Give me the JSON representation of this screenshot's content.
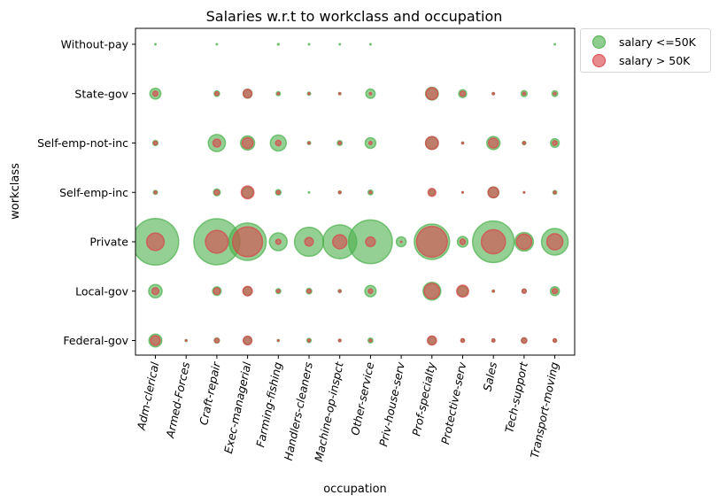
{
  "chart_data": {
    "type": "scatter",
    "title": "Salaries w.r.t to workclass and occupation",
    "xlabel": "occupation",
    "ylabel": "workclass",
    "categories_x": [
      "Adm-clerical",
      "Armed-Forces",
      "Craft-repair",
      "Exec-managerial",
      "Farming-fishing",
      "Handlers-cleaners",
      "Machine-op-inspct",
      "Other-service",
      "Priv-house-serv",
      "Prof-specialty",
      "Protective-serv",
      "Sales",
      "Tech-support",
      "Transport-moving"
    ],
    "categories_y": [
      "Federal-gov",
      "Local-gov",
      "Private",
      "Self-emp-inc",
      "Self-emp-not-inc",
      "State-gov",
      "Without-pay"
    ],
    "grid": false,
    "legend_position": "outside-top-right",
    "series": [
      {
        "name": "salary <=50K",
        "color": "#4cb04c",
        "points": [
          {
            "x": "Adm-clerical",
            "y": "Without-pay",
            "size": 3
          },
          {
            "x": "Craft-repair",
            "y": "Without-pay",
            "size": 1
          },
          {
            "x": "Farming-fishing",
            "y": "Without-pay",
            "size": 4
          },
          {
            "x": "Handlers-cleaners",
            "y": "Without-pay",
            "size": 1
          },
          {
            "x": "Machine-op-inspct",
            "y": "Without-pay",
            "size": 1
          },
          {
            "x": "Other-service",
            "y": "Without-pay",
            "size": 1
          },
          {
            "x": "Transport-moving",
            "y": "Without-pay",
            "size": 1
          },
          {
            "x": "Adm-clerical",
            "y": "State-gov",
            "size": 180
          },
          {
            "x": "Craft-repair",
            "y": "State-gov",
            "size": 45
          },
          {
            "x": "Exec-managerial",
            "y": "State-gov",
            "size": 120
          },
          {
            "x": "Farming-fishing",
            "y": "State-gov",
            "size": 25
          },
          {
            "x": "Handlers-cleaners",
            "y": "State-gov",
            "size": 15
          },
          {
            "x": "Machine-op-inspct",
            "y": "State-gov",
            "size": 8
          },
          {
            "x": "Other-service",
            "y": "State-gov",
            "size": 130
          },
          {
            "x": "Prof-specialty",
            "y": "State-gov",
            "size": 245
          },
          {
            "x": "Protective-serv",
            "y": "State-gov",
            "size": 95
          },
          {
            "x": "Sales",
            "y": "State-gov",
            "size": 8
          },
          {
            "x": "Tech-support",
            "y": "State-gov",
            "size": 55
          },
          {
            "x": "Transport-moving",
            "y": "State-gov",
            "size": 50
          },
          {
            "x": "Adm-clerical",
            "y": "Self-emp-not-inc",
            "size": 40
          },
          {
            "x": "Craft-repair",
            "y": "Self-emp-not-inc",
            "size": 440
          },
          {
            "x": "Exec-managerial",
            "y": "Self-emp-not-inc",
            "size": 300
          },
          {
            "x": "Farming-fishing",
            "y": "Self-emp-not-inc",
            "size": 380
          },
          {
            "x": "Handlers-cleaners",
            "y": "Self-emp-not-inc",
            "size": 15
          },
          {
            "x": "Machine-op-inspct",
            "y": "Self-emp-not-inc",
            "size": 36
          },
          {
            "x": "Other-service",
            "y": "Self-emp-not-inc",
            "size": 170
          },
          {
            "x": "Prof-specialty",
            "y": "Self-emp-not-inc",
            "size": 240
          },
          {
            "x": "Protective-serv",
            "y": "Self-emp-not-inc",
            "size": 6
          },
          {
            "x": "Sales",
            "y": "Self-emp-not-inc",
            "size": 260
          },
          {
            "x": "Tech-support",
            "y": "Self-emp-not-inc",
            "size": 18
          },
          {
            "x": "Transport-moving",
            "y": "Self-emp-not-inc",
            "size": 110
          },
          {
            "x": "Adm-clerical",
            "y": "Self-emp-inc",
            "size": 25
          },
          {
            "x": "Craft-repair",
            "y": "Self-emp-inc",
            "size": 70
          },
          {
            "x": "Exec-managerial",
            "y": "Self-emp-inc",
            "size": 185
          },
          {
            "x": "Farming-fishing",
            "y": "Self-emp-inc",
            "size": 45
          },
          {
            "x": "Handlers-cleaners",
            "y": "Self-emp-inc",
            "size": 2
          },
          {
            "x": "Machine-op-inspct",
            "y": "Self-emp-inc",
            "size": 12
          },
          {
            "x": "Other-service",
            "y": "Self-emp-inc",
            "size": 35
          },
          {
            "x": "Prof-specialty",
            "y": "Self-emp-inc",
            "size": 55
          },
          {
            "x": "Protective-serv",
            "y": "Self-emp-inc",
            "size": 3
          },
          {
            "x": "Sales",
            "y": "Self-emp-inc",
            "size": 175
          },
          {
            "x": "Tech-support",
            "y": "Self-emp-inc",
            "size": 2
          },
          {
            "x": "Transport-moving",
            "y": "Self-emp-inc",
            "size": 22
          },
          {
            "x": "Adm-clerical",
            "y": "Private",
            "size": 3260
          },
          {
            "x": "Craft-repair",
            "y": "Private",
            "size": 3180
          },
          {
            "x": "Exec-managerial",
            "y": "Private",
            "size": 2100
          },
          {
            "x": "Farming-fishing",
            "y": "Private",
            "size": 470
          },
          {
            "x": "Handlers-cleaners",
            "y": "Private",
            "size": 1270
          },
          {
            "x": "Machine-op-inspct",
            "y": "Private",
            "size": 1720
          },
          {
            "x": "Other-service",
            "y": "Private",
            "size": 2880
          },
          {
            "x": "Priv-house-serv",
            "y": "Private",
            "size": 145
          },
          {
            "x": "Prof-specialty",
            "y": "Private",
            "size": 1880
          },
          {
            "x": "Protective-serv",
            "y": "Private",
            "size": 170
          },
          {
            "x": "Sales",
            "y": "Private",
            "size": 2600
          },
          {
            "x": "Tech-support",
            "y": "Private",
            "size": 520
          },
          {
            "x": "Transport-moving",
            "y": "Private",
            "size": 1070
          },
          {
            "x": "Adm-clerical",
            "y": "Local-gov",
            "size": 270
          },
          {
            "x": "Craft-repair",
            "y": "Local-gov",
            "size": 110
          },
          {
            "x": "Exec-managerial",
            "y": "Local-gov",
            "size": 115
          },
          {
            "x": "Farming-fishing",
            "y": "Local-gov",
            "size": 36
          },
          {
            "x": "Handlers-cleaners",
            "y": "Local-gov",
            "size": 45
          },
          {
            "x": "Machine-op-inspct",
            "y": "Local-gov",
            "size": 14
          },
          {
            "x": "Other-service",
            "y": "Local-gov",
            "size": 190
          },
          {
            "x": "Prof-specialty",
            "y": "Local-gov",
            "size": 470
          },
          {
            "x": "Protective-serv",
            "y": "Local-gov",
            "size": 160
          },
          {
            "x": "Sales",
            "y": "Local-gov",
            "size": 7
          },
          {
            "x": "Tech-support",
            "y": "Local-gov",
            "size": 26
          },
          {
            "x": "Transport-moving",
            "y": "Local-gov",
            "size": 120
          },
          {
            "x": "Adm-clerical",
            "y": "Federal-gov",
            "size": 250
          },
          {
            "x": "Armed-Forces",
            "y": "Federal-gov",
            "size": 6
          },
          {
            "x": "Craft-repair",
            "y": "Federal-gov",
            "size": 40
          },
          {
            "x": "Exec-managerial",
            "y": "Federal-gov",
            "size": 95
          },
          {
            "x": "Farming-fishing",
            "y": "Federal-gov",
            "size": 6
          },
          {
            "x": "Handlers-cleaners",
            "y": "Federal-gov",
            "size": 28
          },
          {
            "x": "Machine-op-inspct",
            "y": "Federal-gov",
            "size": 10
          },
          {
            "x": "Other-service",
            "y": "Federal-gov",
            "size": 35
          },
          {
            "x": "Prof-specialty",
            "y": "Federal-gov",
            "size": 95
          },
          {
            "x": "Protective-serv",
            "y": "Federal-gov",
            "size": 16
          },
          {
            "x": "Sales",
            "y": "Federal-gov",
            "size": 14
          },
          {
            "x": "Tech-support",
            "y": "Federal-gov",
            "size": 45
          },
          {
            "x": "Transport-moving",
            "y": "Federal-gov",
            "size": 18
          }
        ]
      },
      {
        "name": "salary > 50K",
        "color": "#d9464b",
        "points": [
          {
            "x": "Adm-clerical",
            "y": "State-gov",
            "size": 38
          },
          {
            "x": "Craft-repair",
            "y": "State-gov",
            "size": 22
          },
          {
            "x": "Exec-managerial",
            "y": "State-gov",
            "size": 110
          },
          {
            "x": "Farming-fishing",
            "y": "State-gov",
            "size": 6
          },
          {
            "x": "Handlers-cleaners",
            "y": "State-gov",
            "size": 5
          },
          {
            "x": "Machine-op-inspct",
            "y": "State-gov",
            "size": 5
          },
          {
            "x": "Other-service",
            "y": "State-gov",
            "size": 7
          },
          {
            "x": "Prof-specialty",
            "y": "State-gov",
            "size": 215
          },
          {
            "x": "Protective-serv",
            "y": "State-gov",
            "size": 40
          },
          {
            "x": "Sales",
            "y": "State-gov",
            "size": 6
          },
          {
            "x": "Tech-support",
            "y": "State-gov",
            "size": 12
          },
          {
            "x": "Transport-moving",
            "y": "State-gov",
            "size": 10
          },
          {
            "x": "Adm-clerical",
            "y": "Self-emp-not-inc",
            "size": 20
          },
          {
            "x": "Craft-repair",
            "y": "Self-emp-not-inc",
            "size": 95
          },
          {
            "x": "Exec-managerial",
            "y": "Self-emp-not-inc",
            "size": 180
          },
          {
            "x": "Farming-fishing",
            "y": "Self-emp-not-inc",
            "size": 45
          },
          {
            "x": "Handlers-cleaners",
            "y": "Self-emp-not-inc",
            "size": 6
          },
          {
            "x": "Machine-op-inspct",
            "y": "Self-emp-not-inc",
            "size": 12
          },
          {
            "x": "Other-service",
            "y": "Self-emp-not-inc",
            "size": 14
          },
          {
            "x": "Prof-specialty",
            "y": "Self-emp-not-inc",
            "size": 245
          },
          {
            "x": "Protective-serv",
            "y": "Self-emp-not-inc",
            "size": 5
          },
          {
            "x": "Sales",
            "y": "Self-emp-not-inc",
            "size": 145
          },
          {
            "x": "Tech-support",
            "y": "Self-emp-not-inc",
            "size": 11
          },
          {
            "x": "Transport-moving",
            "y": "Self-emp-not-inc",
            "size": 32
          },
          {
            "x": "Adm-clerical",
            "y": "Self-emp-inc",
            "size": 10
          },
          {
            "x": "Craft-repair",
            "y": "Self-emp-inc",
            "size": 36
          },
          {
            "x": "Exec-managerial",
            "y": "Self-emp-inc",
            "size": 245
          },
          {
            "x": "Farming-fishing",
            "y": "Self-emp-inc",
            "size": 18
          },
          {
            "x": "Machine-op-inspct",
            "y": "Self-emp-inc",
            "size": 8
          },
          {
            "x": "Other-service",
            "y": "Self-emp-inc",
            "size": 9
          },
          {
            "x": "Prof-specialty",
            "y": "Self-emp-inc",
            "size": 95
          },
          {
            "x": "Protective-serv",
            "y": "Self-emp-inc",
            "size": 3
          },
          {
            "x": "Sales",
            "y": "Self-emp-inc",
            "size": 170
          },
          {
            "x": "Tech-support",
            "y": "Self-emp-inc",
            "size": 2
          },
          {
            "x": "Transport-moving",
            "y": "Self-emp-inc",
            "size": 10
          },
          {
            "x": "Adm-clerical",
            "y": "Private",
            "size": 465
          },
          {
            "x": "Craft-repair",
            "y": "Private",
            "size": 780
          },
          {
            "x": "Exec-managerial",
            "y": "Private",
            "size": 1350
          },
          {
            "x": "Farming-fishing",
            "y": "Private",
            "size": 40
          },
          {
            "x": "Handlers-cleaners",
            "y": "Private",
            "size": 110
          },
          {
            "x": "Machine-op-inspct",
            "y": "Private",
            "size": 300
          },
          {
            "x": "Other-service",
            "y": "Private",
            "size": 140
          },
          {
            "x": "Priv-house-serv",
            "y": "Private",
            "size": 2
          },
          {
            "x": "Prof-specialty",
            "y": "Private",
            "size": 1420
          },
          {
            "x": "Protective-serv",
            "y": "Private",
            "size": 45
          },
          {
            "x": "Sales",
            "y": "Private",
            "size": 880
          },
          {
            "x": "Tech-support",
            "y": "Private",
            "size": 350
          },
          {
            "x": "Transport-moving",
            "y": "Private",
            "size": 390
          },
          {
            "x": "Adm-clerical",
            "y": "Local-gov",
            "size": 70
          },
          {
            "x": "Craft-repair",
            "y": "Local-gov",
            "size": 65
          },
          {
            "x": "Exec-managerial",
            "y": "Local-gov",
            "size": 135
          },
          {
            "x": "Farming-fishing",
            "y": "Local-gov",
            "size": 14
          },
          {
            "x": "Handlers-cleaners",
            "y": "Local-gov",
            "size": 22
          },
          {
            "x": "Machine-op-inspct",
            "y": "Local-gov",
            "size": 7
          },
          {
            "x": "Other-service",
            "y": "Local-gov",
            "size": 30
          },
          {
            "x": "Prof-specialty",
            "y": "Local-gov",
            "size": 360
          },
          {
            "x": "Protective-serv",
            "y": "Local-gov",
            "size": 215
          },
          {
            "x": "Sales",
            "y": "Local-gov",
            "size": 5
          },
          {
            "x": "Tech-support",
            "y": "Local-gov",
            "size": 26
          },
          {
            "x": "Transport-moving",
            "y": "Local-gov",
            "size": 40
          },
          {
            "x": "Adm-clerical",
            "y": "Federal-gov",
            "size": 145
          },
          {
            "x": "Armed-Forces",
            "y": "Federal-gov",
            "size": 2
          },
          {
            "x": "Craft-repair",
            "y": "Federal-gov",
            "size": 30
          },
          {
            "x": "Exec-managerial",
            "y": "Federal-gov",
            "size": 115
          },
          {
            "x": "Farming-fishing",
            "y": "Federal-gov",
            "size": 3
          },
          {
            "x": "Handlers-cleaners",
            "y": "Federal-gov",
            "size": 10
          },
          {
            "x": "Machine-op-inspct",
            "y": "Federal-gov",
            "size": 7
          },
          {
            "x": "Other-service",
            "y": "Federal-gov",
            "size": 9
          },
          {
            "x": "Prof-specialty",
            "y": "Federal-gov",
            "size": 125
          },
          {
            "x": "Protective-serv",
            "y": "Federal-gov",
            "size": 22
          },
          {
            "x": "Sales",
            "y": "Federal-gov",
            "size": 14
          },
          {
            "x": "Tech-support",
            "y": "Federal-gov",
            "size": 42
          },
          {
            "x": "Transport-moving",
            "y": "Federal-gov",
            "size": 18
          }
        ]
      }
    ]
  }
}
